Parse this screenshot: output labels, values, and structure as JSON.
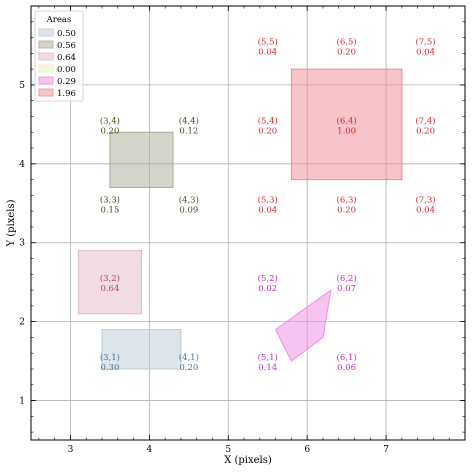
{
  "chart_data": {
    "type": "area",
    "xlabel": "X (pixels)",
    "ylabel": "Y (pixels)",
    "xlim": [
      2.5,
      8.0
    ],
    "ylim": [
      0.5,
      6.0
    ],
    "xticks": [
      3,
      4,
      5,
      6,
      7
    ],
    "yticks": [
      1,
      2,
      3,
      4,
      5
    ],
    "grid": true,
    "legend": {
      "title": "Areas",
      "placement": "top-left",
      "entries": [
        {
          "label": "0.50",
          "color": "#b9cdd6"
        },
        {
          "label": "0.56",
          "color": "#a9ab95"
        },
        {
          "label": "0.64",
          "color": "#e4b9c6"
        },
        {
          "label": "0.00",
          "color": "#f3e9c2"
        },
        {
          "label": "0.29",
          "color": "#f08ae6"
        },
        {
          "label": "1.96",
          "color": "#f08c94"
        }
      ]
    },
    "shapes": [
      {
        "area": "0.50",
        "color": "#b9cdd6",
        "points": [
          [
            3.4,
            1.4
          ],
          [
            4.4,
            1.4
          ],
          [
            4.4,
            1.9
          ],
          [
            3.4,
            1.9
          ]
        ]
      },
      {
        "area": "0.56",
        "color": "#a9ab95",
        "points": [
          [
            3.5,
            3.7
          ],
          [
            4.3,
            3.7
          ],
          [
            4.3,
            4.4
          ],
          [
            3.5,
            4.4
          ]
        ]
      },
      {
        "area": "0.64",
        "color": "#e4b9c6",
        "points": [
          [
            3.1,
            2.1
          ],
          [
            3.9,
            2.1
          ],
          [
            3.9,
            2.9
          ],
          [
            3.1,
            2.9
          ]
        ]
      },
      {
        "area": "0.29",
        "color": "#f08ae6",
        "points": [
          [
            5.6,
            1.9
          ],
          [
            6.3,
            2.4
          ],
          [
            6.2,
            1.8
          ],
          [
            5.8,
            1.5
          ]
        ]
      },
      {
        "area": "1.96",
        "color": "#f08c94",
        "points": [
          [
            5.8,
            3.8
          ],
          [
            7.2,
            3.8
          ],
          [
            7.2,
            5.2
          ],
          [
            5.8,
            5.2
          ]
        ]
      }
    ],
    "cell_labels": [
      {
        "x": 3,
        "y": 1,
        "coord": "(3,1)",
        "value": "0.30",
        "color": "#4a7194"
      },
      {
        "x": 4,
        "y": 1,
        "coord": "(4,1)",
        "value": "0.20",
        "color": "#4a7194"
      },
      {
        "x": 3,
        "y": 2,
        "coord": "(3,2)",
        "value": "0.64",
        "color": "#b1436a"
      },
      {
        "x": 3,
        "y": 3,
        "coord": "(3,3)",
        "value": "0.15",
        "color": "#4c4a19"
      },
      {
        "x": 4,
        "y": 3,
        "coord": "(4,3)",
        "value": "0.09",
        "color": "#4c4a19"
      },
      {
        "x": 3,
        "y": 4,
        "coord": "(3,4)",
        "value": "0.20",
        "color": "#4c4a19"
      },
      {
        "x": 4,
        "y": 4,
        "coord": "(4,4)",
        "value": "0.12",
        "color": "#4c4a19"
      },
      {
        "x": 5,
        "y": 1,
        "coord": "(5,1)",
        "value": "0.14",
        "color": "#d324c8"
      },
      {
        "x": 6,
        "y": 1,
        "coord": "(6,1)",
        "value": "0.06",
        "color": "#d324c8"
      },
      {
        "x": 5,
        "y": 2,
        "coord": "(5,2)",
        "value": "0.02",
        "color": "#d324c8"
      },
      {
        "x": 6,
        "y": 2,
        "coord": "(6,2)",
        "value": "0.07",
        "color": "#d324c8"
      },
      {
        "x": 5,
        "y": 3,
        "coord": "(5,3)",
        "value": "0.04",
        "color": "#d62728"
      },
      {
        "x": 6,
        "y": 3,
        "coord": "(6,3)",
        "value": "0.20",
        "color": "#d62728"
      },
      {
        "x": 7,
        "y": 3,
        "coord": "(7,3)",
        "value": "0.04",
        "color": "#d62728"
      },
      {
        "x": 5,
        "y": 4,
        "coord": "(5,4)",
        "value": "0.20",
        "color": "#d62728"
      },
      {
        "x": 6,
        "y": 4,
        "coord": "(6,4)",
        "value": "1.00",
        "color": "#d62728"
      },
      {
        "x": 7,
        "y": 4,
        "coord": "(7,4)",
        "value": "0.20",
        "color": "#d62728"
      },
      {
        "x": 5,
        "y": 5,
        "coord": "(5,5)",
        "value": "0.04",
        "color": "#d62728"
      },
      {
        "x": 6,
        "y": 5,
        "coord": "(6,5)",
        "value": "0.20",
        "color": "#d62728"
      },
      {
        "x": 7,
        "y": 5,
        "coord": "(7,5)",
        "value": "0.04",
        "color": "#d62728"
      }
    ]
  }
}
